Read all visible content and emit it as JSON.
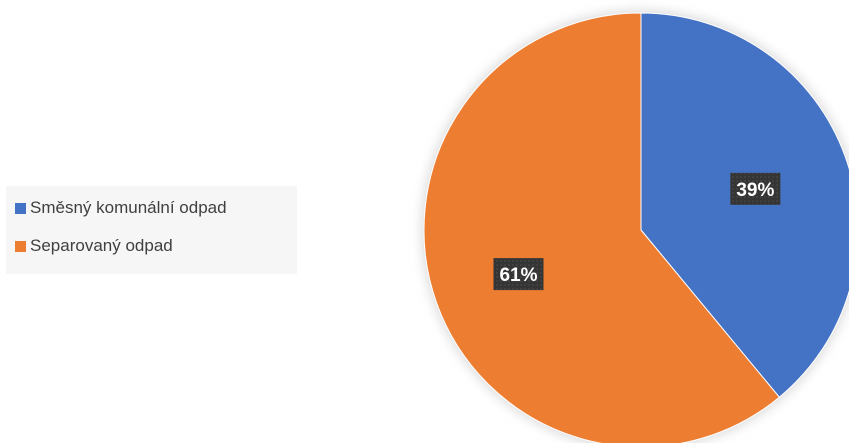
{
  "chart_data": {
    "type": "pie",
    "categories": [
      "Směsný komunální odpad",
      "Separovaný odpad"
    ],
    "values": [
      39,
      61
    ],
    "data_labels": [
      "39%",
      "61%"
    ],
    "colors": [
      "#4472C4",
      "#ED7D31"
    ],
    "legend_placement": "left"
  }
}
